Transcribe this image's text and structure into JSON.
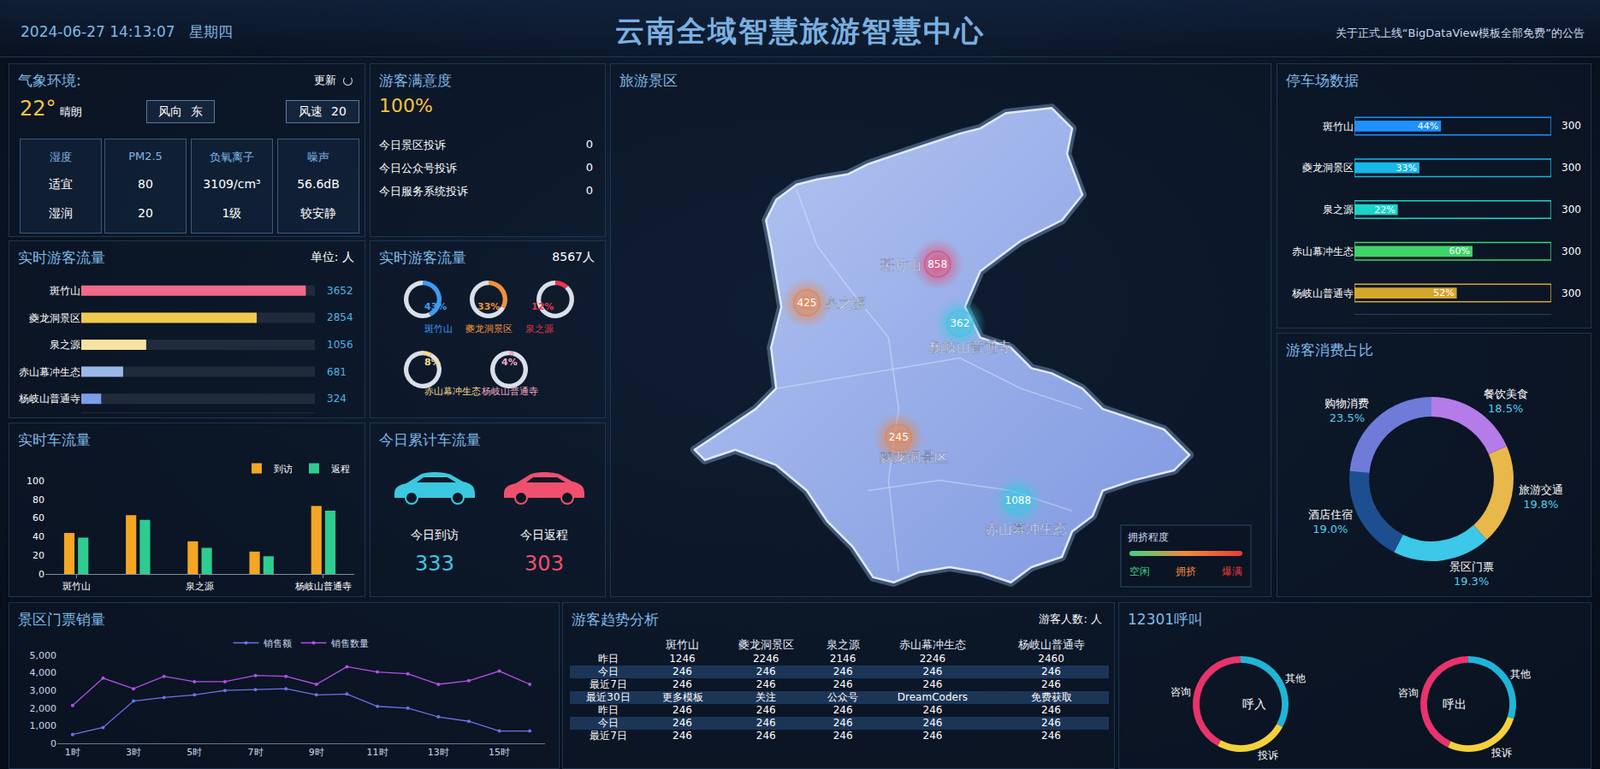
{
  "header": {
    "datetime": "2024-06-27 14:13:07",
    "weekday": "星期四",
    "title": "云南全域智慧旅游智慧中心",
    "notice": "关于正式上线“BigDataView模板全部免费”的公告"
  },
  "weather": {
    "title": "气象环境:",
    "refresh": "更新",
    "temperature": "22°",
    "condition": "晴朗",
    "wind": [
      {
        "label": "风向",
        "value": "东"
      },
      {
        "label": "风速",
        "value": 20
      }
    ],
    "cells": [
      {
        "name": "湿度",
        "value": "适宜",
        "level": "湿润"
      },
      {
        "name": "PM2.5",
        "value": 80,
        "level": 20
      },
      {
        "name": "负氧离子",
        "value": "3109/cm³",
        "level": "1级"
      },
      {
        "name": "噪声",
        "value": "56.6dB",
        "level": "较安静"
      }
    ]
  },
  "satisfaction": {
    "title": "游客满意度",
    "rate": "100%",
    "items": [
      {
        "label": "今日景区投诉",
        "value": 0
      },
      {
        "label": "今日公众号投诉",
        "value": 0
      },
      {
        "label": "今日服务系统投诉",
        "value": 0
      }
    ]
  },
  "car_totals": {
    "title": "今日累计车流量",
    "items": [
      {
        "label": "今日到访",
        "value": 333,
        "color": "#3cc8e0"
      },
      {
        "label": "今日返程",
        "value": 303,
        "color": "#f0506e"
      }
    ]
  },
  "map": {
    "title": "旅游景区",
    "spots": [
      {
        "name": "斑竹山",
        "value": 858,
        "color": "#e0507a"
      },
      {
        "name": "泉之源",
        "value": 425,
        "color": "#e8864a"
      },
      {
        "name": "杨岐山普通寺",
        "value": 362,
        "color": "#3cc8e0"
      },
      {
        "name": "夔龙洞景区",
        "value": 245,
        "color": "#e8864a"
      },
      {
        "name": "赤山幕冲生态",
        "value": 1088,
        "color": "#3cc8e0"
      }
    ],
    "legend": {
      "title": "拥挤程度",
      "labels": [
        "空闲",
        "拥挤",
        "爆满"
      ],
      "colors": [
        "#3cd48a",
        "#f08a3a",
        "#e83a3a"
      ]
    }
  },
  "trend_table": {
    "title": "游客趋势分析",
    "unit": "游客人数: 人",
    "columns": [
      "斑竹山",
      "夔龙洞景区",
      "泉之源",
      "赤山幕冲生态",
      "杨岐山普通寺"
    ],
    "rows": [
      {
        "label": "昨日",
        "cells": [
          1246,
          2246,
          2146,
          2246,
          2460
        ]
      },
      {
        "label": "今日",
        "cells": [
          246,
          246,
          246,
          246,
          246
        ]
      },
      {
        "label": "最近7日",
        "cells": [
          246,
          246,
          246,
          246,
          246
        ]
      },
      {
        "label": "最近30日",
        "cells": [
          "更多模板",
          "关注",
          "公众号",
          "DreamCoders",
          "免费获取"
        ]
      },
      {
        "label": "昨日",
        "cells": [
          246,
          246,
          246,
          246,
          246
        ]
      },
      {
        "label": "今日",
        "cells": [
          246,
          246,
          246,
          246,
          246
        ]
      },
      {
        "label": "最近7日",
        "cells": [
          246,
          246,
          246,
          246,
          246
        ]
      }
    ]
  },
  "calls": {
    "title": "12301呼叫"
  },
  "chart_data": [
    {
      "type": "bar",
      "title": "实时游客流量",
      "subtitle": "单位: 人",
      "orientation": "horizontal",
      "categories": [
        "斑竹山",
        "夔龙洞景区",
        "泉之源",
        "赤山幕冲生态",
        "杨岐山普通寺"
      ],
      "values": [
        3652,
        2854,
        1056,
        681,
        324
      ],
      "colors": [
        "#f06a8a",
        "#f2c94c",
        "#f7e3a0",
        "#9ab8e8",
        "#7a9ee8"
      ],
      "xlim": [
        0,
        3800
      ],
      "tick_labels": "y",
      "data_labels": true,
      "grid": false
    },
    {
      "type": "donut",
      "title": "实时游客流量",
      "subtitle": "8567人",
      "categories": [
        "斑竹山",
        "夔龙洞景区",
        "泉之源",
        "赤山幕冲生态",
        "杨岐山普通寺"
      ],
      "values": [
        43,
        33,
        12,
        8,
        4
      ],
      "value_labels": [
        "43%",
        "33%",
        "12%",
        "8%",
        "4%"
      ],
      "colors": [
        "#3d9cf0",
        "#f0913a",
        "#e8354a",
        "#f5d98a",
        "#f0a8c0"
      ],
      "ylim": [
        0,
        100
      ],
      "data_labels": true
    },
    {
      "type": "bar",
      "title": "实时车流量",
      "categories": [
        "斑竹山",
        null,
        "泉之源",
        null,
        "杨岐山普通寺"
      ],
      "series": [
        {
          "name": "到访",
          "color": "#f5a623",
          "values": [
            44,
            63,
            35,
            24,
            73
          ]
        },
        {
          "name": "返程",
          "color": "#2ecc8f",
          "values": [
            39,
            58,
            28,
            19,
            68
          ]
        }
      ],
      "ylim": [
        0,
        100
      ],
      "yticks": [
        0,
        20,
        40,
        60,
        80,
        100
      ],
      "legend": "top-right",
      "grid": false
    },
    {
      "type": "bar",
      "title": "停车场数据",
      "orientation": "horizontal",
      "categories": [
        "斑竹山",
        "夔龙洞景区",
        "泉之源",
        "赤山幕冲生态",
        "杨岐山普通寺"
      ],
      "values": [
        44,
        33,
        22,
        60,
        52
      ],
      "value_labels": [
        "44%",
        "33%",
        "22%",
        "60%",
        "52%"
      ],
      "capacity": [
        300,
        300,
        300,
        300,
        300
      ],
      "colors": [
        "#1e90ff",
        "#17b8e8",
        "#19d6c8",
        "#3fd46a",
        "#d4a72c"
      ],
      "xlim": [
        0,
        100
      ],
      "tick_labels": "y",
      "data_labels": true,
      "grid": false
    },
    {
      "type": "donut",
      "title": "游客消费占比",
      "categories": [
        "餐饮美食",
        "旅游交通",
        "景区门票",
        "酒店住宿",
        "购物消费"
      ],
      "values": [
        18.5,
        19.8,
        19.3,
        19.0,
        23.5
      ],
      "value_labels": [
        "18.5%",
        "19.8%",
        "19.3%",
        "19.0%",
        "23.5%"
      ],
      "colors": [
        "#b57be8",
        "#e8b84a",
        "#3cc8e8",
        "#1d4e8f",
        "#6e7bd9"
      ],
      "data_labels": true
    },
    {
      "type": "line",
      "title": "景区门票销量",
      "categories": [
        "1时",
        null,
        "3时",
        null,
        "5时",
        null,
        "7时",
        null,
        "9时",
        null,
        "11时",
        null,
        "13时",
        null,
        "15时",
        null
      ],
      "series": [
        {
          "name": "销售额",
          "color": "#6b72e8",
          "values": [
            500,
            900,
            2400,
            2600,
            2750,
            3000,
            3050,
            3100,
            2750,
            2800,
            2100,
            2000,
            1500,
            1250,
            700,
            700
          ]
        },
        {
          "name": "销售数量",
          "color": "#b44fe8",
          "values": [
            2150,
            3700,
            3100,
            3800,
            3500,
            3500,
            3850,
            3800,
            3350,
            4350,
            4050,
            3950,
            3350,
            3550,
            4100,
            3350
          ]
        }
      ],
      "ylim": [
        0,
        5000
      ],
      "yticks": [
        0,
        {
          "value": 1000,
          "label": "1,000"
        },
        {
          "value": 2000,
          "label": "2,000"
        },
        {
          "value": 3000,
          "label": "3,000"
        },
        {
          "value": 4000,
          "label": "4,000"
        },
        {
          "value": 5000,
          "label": "5,000"
        }
      ],
      "legend": "top",
      "marker": "circle",
      "grid": false
    },
    {
      "type": "donut",
      "title": "呼入",
      "categories": [
        "其他",
        "投诉",
        "咨询"
      ],
      "values": [
        33,
        25,
        42
      ],
      "colors": [
        "#1fb5d6",
        "#f2d13c",
        "#e8336b"
      ]
    },
    {
      "type": "donut",
      "title": "呼出",
      "categories": [
        "其他",
        "投诉",
        "咨询"
      ],
      "values": [
        30,
        27,
        43
      ],
      "colors": [
        "#1fb5d6",
        "#f2d13c",
        "#e8336b"
      ]
    }
  ]
}
